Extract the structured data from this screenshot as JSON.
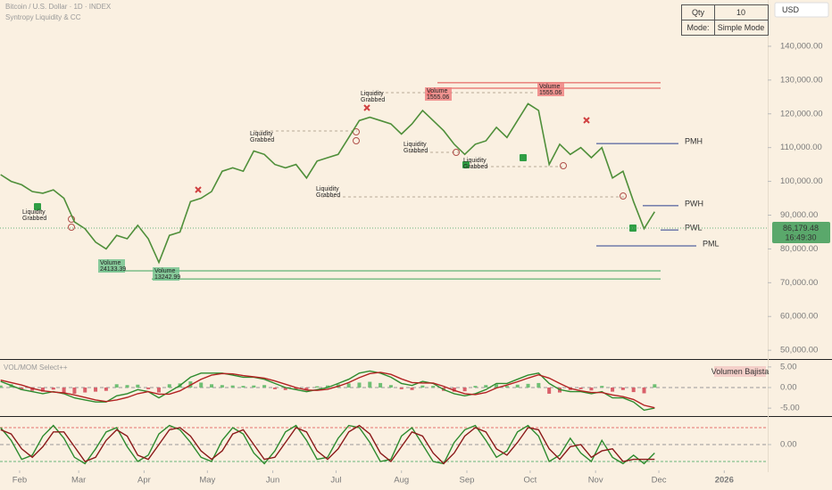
{
  "header": {
    "title": "Bitcoin / U.S. Dollar · 1D · INDEX",
    "indicator": "Syntropy Liquidity & CC"
  },
  "settings_table": {
    "rows": [
      [
        "Qty",
        "10"
      ],
      [
        "Mode:",
        "Simple Mode"
      ]
    ]
  },
  "currency": "USD",
  "chart_data": [
    {
      "type": "line",
      "color": "#4f8f3a",
      "x": [
        22,
        27,
        32,
        37,
        42,
        47,
        52,
        57,
        62,
        67,
        72,
        77,
        82,
        87,
        92,
        97,
        102,
        107,
        112,
        117,
        122,
        127,
        132,
        137,
        142,
        147,
        152,
        157,
        162,
        167,
        172,
        177,
        182,
        187,
        192,
        197,
        202,
        207,
        212,
        217,
        222,
        227,
        232,
        237,
        242,
        247,
        252,
        257,
        262,
        267,
        272,
        277,
        282,
        287,
        292,
        297,
        302,
        307,
        312,
        317,
        322,
        327,
        332
      ],
      "values": [
        102000,
        100000,
        99000,
        97000,
        96500,
        97500,
        95000,
        88000,
        86000,
        82000,
        80000,
        84000,
        83000,
        87000,
        83000,
        76000,
        84000,
        85000,
        94000,
        95000,
        97000,
        103000,
        104000,
        103000,
        109000,
        108000,
        105000,
        104000,
        105000,
        101000,
        106000,
        107000,
        108000,
        113000,
        118000,
        119000,
        118000,
        117000,
        114000,
        117000,
        121000,
        118000,
        115000,
        111000,
        108000,
        111000,
        112000,
        116000,
        113000,
        118000,
        123000,
        121000,
        105000,
        111000,
        108000,
        110000,
        107000,
        110000,
        101000,
        103000,
        94000,
        86000,
        91000
      ],
      "xlim": [
        21.7,
        385.6
      ],
      "xticks": [
        {
          "value": 31,
          "label": "Feb"
        },
        {
          "value": 59,
          "label": "Mar"
        },
        {
          "value": 90,
          "label": "Apr"
        },
        {
          "value": 120,
          "label": "May"
        },
        {
          "value": 151,
          "label": "Jun"
        },
        {
          "value": 181,
          "label": "Jul"
        },
        {
          "value": 212,
          "label": "Aug"
        },
        {
          "value": 243,
          "label": "Sep"
        },
        {
          "value": 273,
          "label": "Oct"
        },
        {
          "value": 304,
          "label": "Nov"
        },
        {
          "value": 334,
          "label": "Dec"
        },
        {
          "value": 365,
          "label": "2026"
        }
      ],
      "ylim": [
        47400,
        153700
      ],
      "yticks": [
        {
          "value": 140000,
          "label": "140,000.00"
        },
        {
          "value": 130000,
          "label": "130,000.00"
        },
        {
          "value": 120000,
          "label": "120,000.00"
        },
        {
          "value": 110000,
          "label": "110,000.00"
        },
        {
          "value": 100000,
          "label": "100,000.00"
        },
        {
          "value": 90000,
          "label": "90,000.00"
        },
        {
          "value": 80000,
          "label": "80,000.00"
        },
        {
          "value": 70000,
          "label": "70,000.00"
        },
        {
          "value": 60000,
          "label": "60,000.00"
        },
        {
          "value": 50000,
          "label": "50,000.00"
        }
      ],
      "last_price": {
        "value": 86179.48,
        "label": "86,179.48"
      },
      "countdown": "16:49:30",
      "levels": [
        {
          "label": "PMH",
          "value": 111200,
          "color": "#2a3f8f"
        },
        {
          "label": "PWH",
          "value": 92800,
          "color": "#2a3f8f"
        },
        {
          "label": "PWL",
          "value": 85600,
          "color": "#2a3f8f"
        },
        {
          "label": "PML",
          "value": 80900,
          "color": "#2a3f8f"
        },
        {
          "value": 129200,
          "color": "#e04848"
        },
        {
          "value": 127600,
          "color": "#e04848"
        },
        {
          "value": 73500,
          "color": "#3aa35a"
        },
        {
          "value": 71100,
          "color": "#3aa35a"
        }
      ],
      "annotations": [
        {
          "lines": [
            "Liquidity",
            "Grabbed"
          ]
        },
        {
          "lines": [
            "Liquidity",
            "Grabbed"
          ]
        },
        {
          "lines": [
            "Liquidity",
            "Grabbed"
          ]
        },
        {
          "lines": [
            "Liquidity",
            "Grabbed"
          ]
        },
        {
          "lines": [
            "Liquidity",
            "Grabbed"
          ]
        },
        {
          "lines": [
            "Liquidity",
            "Grabbed"
          ]
        },
        {
          "lines": [
            "Volume",
            "24133.39"
          ]
        },
        {
          "lines": [
            "Volume",
            "13242.99"
          ]
        },
        {
          "lines": [
            "Volume",
            "1555.06"
          ]
        },
        {
          "lines": [
            "Volume",
            "1555.06"
          ]
        }
      ]
    },
    {
      "type": "line",
      "title": "VOL/MOM Select++",
      "badge": "Volumen Bajista",
      "x": [
        22,
        27,
        32,
        37,
        42,
        47,
        52,
        57,
        62,
        67,
        72,
        77,
        82,
        87,
        92,
        97,
        102,
        107,
        112,
        117,
        122,
        127,
        132,
        137,
        142,
        147,
        152,
        157,
        162,
        167,
        172,
        177,
        182,
        187,
        192,
        197,
        202,
        207,
        212,
        217,
        222,
        227,
        232,
        237,
        242,
        247,
        252,
        257,
        262,
        267,
        272,
        277,
        282,
        287,
        292,
        297,
        302,
        307,
        312,
        317,
        322,
        327,
        332
      ],
      "series": [
        {
          "color": "#2e8b2e",
          "values": [
            1.5,
            0.5,
            -0.5,
            -1,
            -1.5,
            -1,
            -1.5,
            -2.5,
            -3,
            -3.5,
            -3.5,
            -2,
            -1.5,
            -0.5,
            -1,
            -2.5,
            -1,
            0.5,
            2.5,
            3.5,
            3.5,
            3.5,
            3,
            2.5,
            2.5,
            2,
            1,
            0,
            -0.5,
            -1,
            -0.5,
            0,
            1,
            2,
            3.5,
            4,
            3.5,
            2.5,
            1,
            0.5,
            1.5,
            1,
            -0.5,
            -1.5,
            -2,
            -1.5,
            -0.5,
            1,
            1,
            2,
            3,
            3.5,
            1,
            -0.5,
            -1,
            -1,
            -1.5,
            -1,
            -2.5,
            -2.5,
            -3.5,
            -5.5,
            -5
          ]
        },
        {
          "color": "#b22222",
          "values": [
            1.8,
            1.2,
            0.6,
            -0.2,
            -0.8,
            -1.1,
            -1.3,
            -1.8,
            -2.4,
            -3,
            -3.4,
            -3,
            -2.4,
            -1.5,
            -1,
            -1.6,
            -1.6,
            -0.8,
            0.6,
            2,
            3,
            3.4,
            3.3,
            2.9,
            2.6,
            2.3,
            1.6,
            0.8,
            0,
            -0.6,
            -0.7,
            -0.4,
            0.3,
            1.2,
            2.4,
            3.4,
            3.7,
            3.2,
            2.1,
            1.2,
            1.1,
            1.1,
            0.3,
            -0.7,
            -1.5,
            -1.7,
            -1.2,
            -0.1,
            0.6,
            1.4,
            2.3,
            3.1,
            2.3,
            1,
            -0.2,
            -0.8,
            -1.2,
            -1.2,
            -1.8,
            -2.2,
            -2.9,
            -4.3,
            -4.9
          ]
        }
      ],
      "histogram": {
        "up_color": "#6fbf73",
        "down_color": "#d9606a",
        "values": [
          0.5,
          0.8,
          -0.6,
          -0.8,
          -1,
          -0.5,
          -1.2,
          -1.5,
          -1.2,
          -1,
          -0.8,
          0.8,
          0.6,
          0.7,
          -0.4,
          -1.2,
          0.8,
          1,
          1.5,
          1.2,
          0.8,
          0.6,
          0.5,
          0.4,
          0.5,
          0.6,
          -0.4,
          -0.6,
          -0.5,
          -0.6,
          0.3,
          0.5,
          0.8,
          1,
          1.2,
          1.4,
          1.1,
          0.6,
          -0.4,
          -0.6,
          0.5,
          0.4,
          -0.8,
          -1,
          -0.9,
          0.4,
          0.6,
          0.8,
          0.4,
          0.7,
          0.9,
          1.1,
          -1.5,
          -1.2,
          -0.6,
          -0.4,
          -0.7,
          0.4,
          -1,
          -0.6,
          -1.1,
          -1.4,
          0.8
        ]
      },
      "ylim": [
        -6.7,
        6.7
      ],
      "yticks": [
        {
          "value": 5,
          "label": "5.00"
        },
        {
          "value": 0,
          "label": "0.00"
        },
        {
          "value": -5,
          "label": "-5.00"
        }
      ]
    },
    {
      "type": "line",
      "x": [
        22,
        27,
        32,
        37,
        42,
        47,
        52,
        57,
        62,
        67,
        72,
        77,
        82,
        87,
        92,
        97,
        102,
        107,
        112,
        117,
        122,
        127,
        132,
        137,
        142,
        147,
        152,
        157,
        162,
        167,
        172,
        177,
        182,
        187,
        192,
        197,
        202,
        207,
        212,
        217,
        222,
        227,
        232,
        237,
        242,
        247,
        252,
        257,
        262,
        267,
        272,
        277,
        282,
        287,
        292,
        297,
        302,
        307,
        312,
        317,
        322,
        327,
        332
      ],
      "series": [
        {
          "color": "#2e8b2e",
          "values": [
            0.8,
            0.2,
            -0.7,
            -0.5,
            0.4,
            0.9,
            0.3,
            -0.6,
            -0.9,
            -0.2,
            0.6,
            0.8,
            -0.1,
            -0.8,
            -0.5,
            0.5,
            0.9,
            0.7,
            0.1,
            -0.6,
            -0.8,
            0.2,
            0.8,
            0.5,
            -0.4,
            -0.9,
            -0.3,
            0.6,
            0.9,
            0.2,
            -0.7,
            -0.6,
            0.3,
            0.9,
            0.8,
            0.1,
            -0.8,
            -0.7,
            0.4,
            0.8,
            0,
            -0.8,
            -0.9,
            0.1,
            0.7,
            0.9,
            0.2,
            -0.6,
            -0.3,
            0.6,
            0.9,
            0.4,
            -0.8,
            -0.5,
            0.3,
            -0.4,
            -0.8,
            0.2,
            -0.6,
            -0.9,
            -0.5,
            -0.9,
            -0.4
          ]
        },
        {
          "color": "#8b1a1a",
          "values": [
            0.7,
            0.5,
            -0.2,
            -0.6,
            -0.1,
            0.6,
            0.6,
            -0.1,
            -0.8,
            -0.6,
            0.2,
            0.7,
            0.4,
            -0.5,
            -0.7,
            0,
            0.7,
            0.8,
            0.4,
            -0.3,
            -0.7,
            -0.3,
            0.5,
            0.7,
            0,
            -0.7,
            -0.6,
            0.1,
            0.8,
            0.6,
            -0.3,
            -0.7,
            -0.2,
            0.6,
            0.9,
            0.5,
            -0.4,
            -0.8,
            -0.1,
            0.6,
            0.4,
            -0.4,
            -0.9,
            -0.4,
            0.4,
            0.8,
            0.6,
            -0.2,
            -0.5,
            0.1,
            0.8,
            0.7,
            -0.2,
            -0.7,
            -0.1,
            0,
            -0.6,
            -0.3,
            -0.2,
            -0.8,
            -0.7,
            -0.7,
            -0.7
          ]
        }
      ],
      "levels": [
        {
          "value": 0.8,
          "color": "#e04848"
        },
        {
          "value": -0.8,
          "color": "#3aa35a"
        }
      ],
      "ylim": [
        -1.2,
        1.2
      ],
      "yticks": [
        {
          "value": 0,
          "label": "0.00"
        }
      ]
    }
  ]
}
